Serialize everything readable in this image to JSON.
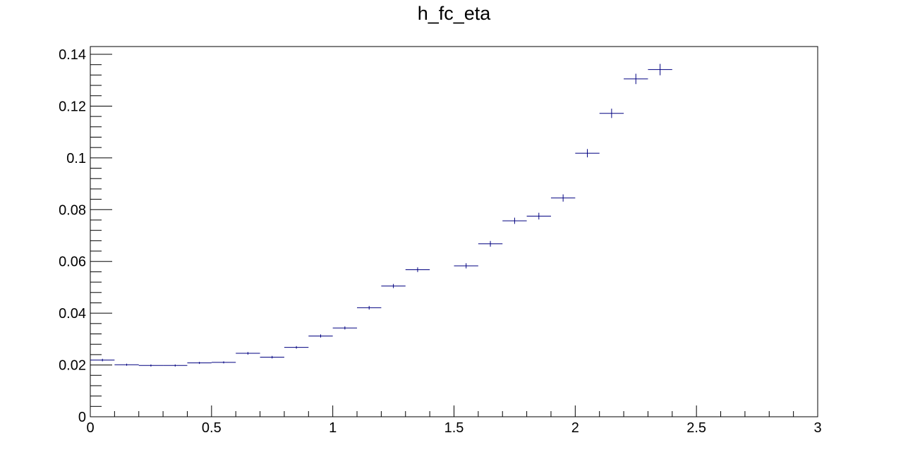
{
  "chart_data": {
    "type": "scatter",
    "title": "h_fc_eta",
    "xlabel": "",
    "ylabel": "",
    "xlim": [
      0,
      3
    ],
    "ylim": [
      0,
      0.143
    ],
    "x_ticks": [
      0,
      0.5,
      1,
      1.5,
      2,
      2.5,
      3
    ],
    "x_tick_labels": [
      "0",
      "0.5",
      "1",
      "1.5",
      "2",
      "2.5",
      "3"
    ],
    "y_ticks": [
      0,
      0.02,
      0.04,
      0.06,
      0.08,
      0.1,
      0.12,
      0.14
    ],
    "y_tick_labels": [
      "0",
      "0.02",
      "0.04",
      "0.06",
      "0.08",
      "0.1",
      "0.12",
      "0.14"
    ],
    "grid": false,
    "legend": "none",
    "series": [
      {
        "color": "#000080",
        "bin_width": 0.1,
        "x": [
          0.05,
          0.15,
          0.25,
          0.35,
          0.45,
          0.55,
          0.65,
          0.75,
          0.85,
          0.95,
          1.05,
          1.15,
          1.25,
          1.35,
          1.55,
          1.65,
          1.75,
          1.85,
          1.95,
          2.05,
          2.15,
          2.25,
          2.35
        ],
        "y": [
          0.0219,
          0.0201,
          0.0198,
          0.0198,
          0.0208,
          0.021,
          0.0245,
          0.023,
          0.0268,
          0.0312,
          0.0343,
          0.0421,
          0.0505,
          0.0568,
          0.0583,
          0.0668,
          0.0757,
          0.0775,
          0.0845,
          0.1018,
          0.1172,
          0.1305,
          0.1341
        ],
        "y_err": [
          0.0005,
          0.0004,
          0.0004,
          0.0004,
          0.0004,
          0.0004,
          0.0005,
          0.0005,
          0.0005,
          0.0006,
          0.0006,
          0.0007,
          0.0008,
          0.0009,
          0.001,
          0.0011,
          0.0012,
          0.0013,
          0.0014,
          0.0016,
          0.0018,
          0.002,
          0.0022
        ]
      }
    ]
  }
}
